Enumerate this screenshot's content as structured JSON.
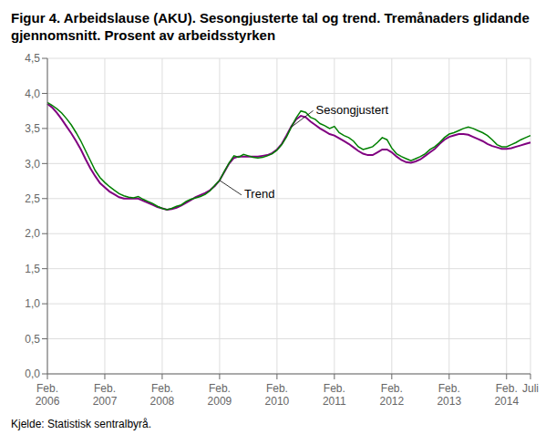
{
  "chart_data": {
    "type": "line",
    "title": "Figur 4. Arbeidslause (AKU). Sesongjusterte tal og trend. Tremånaders glidande\ngjennomsnitt. Prosent av arbeidsstyrken",
    "source": "Kjelde: Statistisk sentralbyrå.",
    "grid": true,
    "ylim": [
      0.0,
      4.5
    ],
    "yticks": [
      {
        "value": 0.0,
        "label": "0,0"
      },
      {
        "value": 0.5,
        "label": "0,5"
      },
      {
        "value": 1.0,
        "label": "1,0"
      },
      {
        "value": 1.5,
        "label": "1,5"
      },
      {
        "value": 2.0,
        "label": "2,0"
      },
      {
        "value": 2.5,
        "label": "2,5"
      },
      {
        "value": 3.0,
        "label": "3,0"
      },
      {
        "value": 3.5,
        "label": "3,5"
      },
      {
        "value": 4.0,
        "label": "4,0"
      },
      {
        "value": 4.5,
        "label": "4,5"
      }
    ],
    "categories": [
      "Feb.\n2006",
      null,
      null,
      null,
      null,
      null,
      null,
      null,
      null,
      null,
      null,
      null,
      "Feb.\n2007",
      null,
      null,
      null,
      null,
      null,
      null,
      null,
      null,
      null,
      null,
      null,
      "Feb.\n2008",
      null,
      null,
      null,
      null,
      null,
      null,
      null,
      null,
      null,
      null,
      null,
      "Feb.\n2009",
      null,
      null,
      null,
      null,
      null,
      null,
      null,
      null,
      null,
      null,
      null,
      "Feb.\n2010",
      null,
      null,
      null,
      null,
      null,
      null,
      null,
      null,
      null,
      null,
      null,
      "Feb.\n2011",
      null,
      null,
      null,
      null,
      null,
      null,
      null,
      null,
      null,
      null,
      null,
      "Feb.\n2012",
      null,
      null,
      null,
      null,
      null,
      null,
      null,
      null,
      null,
      null,
      null,
      "Feb.\n2013",
      null,
      null,
      null,
      null,
      null,
      null,
      null,
      null,
      null,
      null,
      null,
      "Feb.\n2014",
      null,
      null,
      null,
      null,
      "Juli"
    ],
    "series": [
      {
        "name": "Trend",
        "color": "#800080",
        "values": [
          3.85,
          3.8,
          3.72,
          3.63,
          3.53,
          3.43,
          3.32,
          3.2,
          3.06,
          2.93,
          2.82,
          2.72,
          2.66,
          2.6,
          2.56,
          2.52,
          2.5,
          2.5,
          2.5,
          2.5,
          2.47,
          2.44,
          2.41,
          2.38,
          2.36,
          2.34,
          2.35,
          2.37,
          2.4,
          2.44,
          2.48,
          2.52,
          2.55,
          2.58,
          2.62,
          2.68,
          2.76,
          2.88,
          3.0,
          3.08,
          3.1,
          3.1,
          3.1,
          3.1,
          3.1,
          3.11,
          3.12,
          3.15,
          3.2,
          3.28,
          3.4,
          3.53,
          3.63,
          3.68,
          3.66,
          3.6,
          3.55,
          3.5,
          3.46,
          3.42,
          3.4,
          3.36,
          3.32,
          3.28,
          3.23,
          3.18,
          3.14,
          3.12,
          3.12,
          3.16,
          3.2,
          3.2,
          3.16,
          3.1,
          3.05,
          3.02,
          3.01,
          3.03,
          3.06,
          3.11,
          3.16,
          3.21,
          3.28,
          3.34,
          3.38,
          3.4,
          3.42,
          3.42,
          3.41,
          3.38,
          3.35,
          3.32,
          3.28,
          3.25,
          3.23,
          3.21,
          3.21,
          3.22,
          3.24,
          3.26,
          3.28,
          3.3
        ]
      },
      {
        "name": "Sesongjustert",
        "color": "#008000",
        "values": [
          3.87,
          3.83,
          3.78,
          3.72,
          3.64,
          3.55,
          3.44,
          3.32,
          3.18,
          3.04,
          2.9,
          2.8,
          2.73,
          2.67,
          2.62,
          2.57,
          2.54,
          2.52,
          2.51,
          2.53,
          2.49,
          2.46,
          2.43,
          2.39,
          2.36,
          2.34,
          2.36,
          2.39,
          2.41,
          2.46,
          2.49,
          2.51,
          2.53,
          2.56,
          2.61,
          2.69,
          2.76,
          2.89,
          3.01,
          3.11,
          3.09,
          3.13,
          3.11,
          3.09,
          3.08,
          3.09,
          3.11,
          3.14,
          3.19,
          3.27,
          3.38,
          3.52,
          3.65,
          3.75,
          3.73,
          3.66,
          3.63,
          3.57,
          3.54,
          3.5,
          3.53,
          3.44,
          3.4,
          3.37,
          3.32,
          3.24,
          3.2,
          3.22,
          3.24,
          3.3,
          3.37,
          3.34,
          3.22,
          3.14,
          3.1,
          3.07,
          3.04,
          3.07,
          3.1,
          3.14,
          3.2,
          3.24,
          3.3,
          3.37,
          3.42,
          3.44,
          3.47,
          3.5,
          3.52,
          3.5,
          3.47,
          3.44,
          3.4,
          3.34,
          3.27,
          3.24,
          3.24,
          3.27,
          3.3,
          3.34,
          3.37,
          3.4
        ]
      }
    ]
  }
}
